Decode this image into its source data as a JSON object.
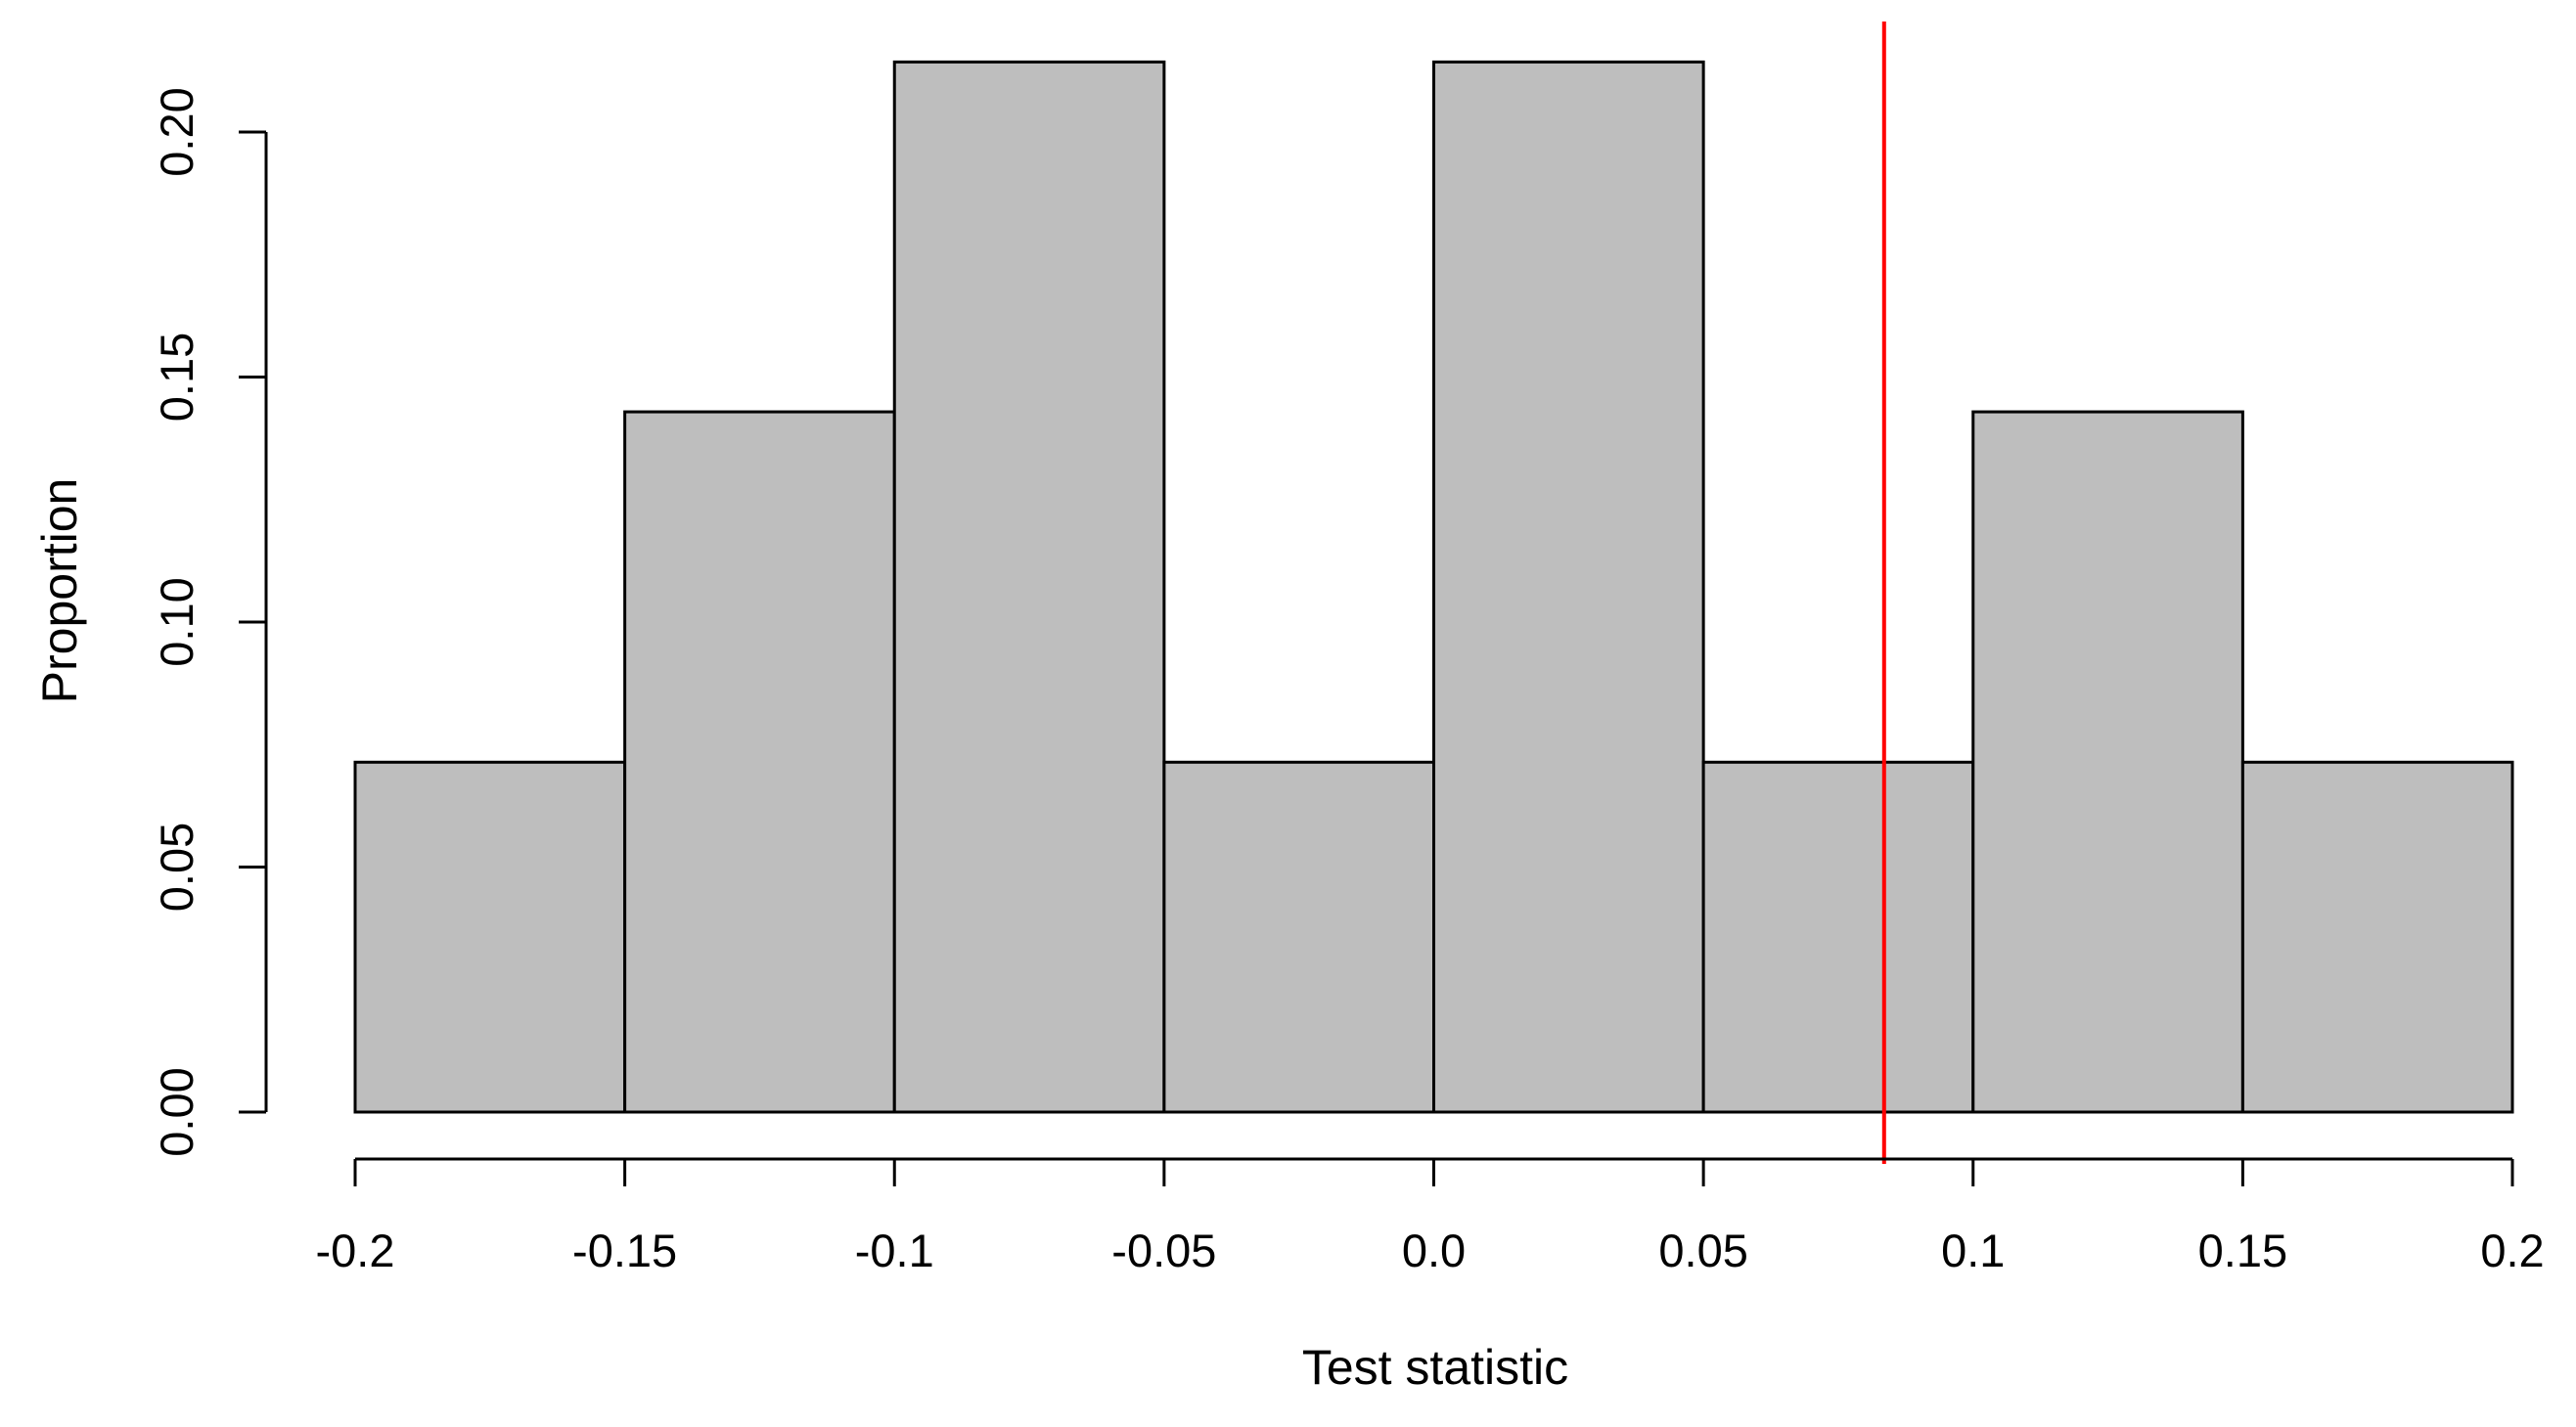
{
  "chart_data": {
    "type": "bar",
    "subtype": "histogram",
    "bins": [
      {
        "start": -0.2,
        "end": -0.15,
        "value": 0.0714
      },
      {
        "start": -0.15,
        "end": -0.1,
        "value": 0.1429
      },
      {
        "start": -0.1,
        "end": -0.05,
        "value": 0.2143
      },
      {
        "start": -0.05,
        "end": 0.0,
        "value": 0.0714
      },
      {
        "start": 0.0,
        "end": 0.05,
        "value": 0.2143
      },
      {
        "start": 0.05,
        "end": 0.1,
        "value": 0.0714
      },
      {
        "start": 0.1,
        "end": 0.15,
        "value": 0.1429
      },
      {
        "start": 0.15,
        "end": 0.2,
        "value": 0.0714
      }
    ],
    "reference_line": {
      "x": 0.0835,
      "color": "#ff0000"
    },
    "xlabel": "Test statistic",
    "ylabel": "Proportion",
    "xlim": [
      -0.2,
      0.2
    ],
    "ylim": [
      0,
      0.2143
    ],
    "x_ticks": [
      {
        "value": -0.2,
        "label": "-0.2"
      },
      {
        "value": -0.15,
        "label": "-0.15"
      },
      {
        "value": -0.1,
        "label": "-0.1"
      },
      {
        "value": -0.05,
        "label": "-0.05"
      },
      {
        "value": 0.0,
        "label": "0.0"
      },
      {
        "value": 0.05,
        "label": "0.05"
      },
      {
        "value": 0.1,
        "label": "0.1"
      },
      {
        "value": 0.15,
        "label": "0.15"
      },
      {
        "value": 0.2,
        "label": "0.2"
      }
    ],
    "y_ticks": [
      {
        "value": 0.0,
        "label": "0.00"
      },
      {
        "value": 0.05,
        "label": "0.05"
      },
      {
        "value": 0.1,
        "label": "0.10"
      },
      {
        "value": 0.15,
        "label": "0.15"
      },
      {
        "value": 0.2,
        "label": "0.20"
      }
    ],
    "grid": false,
    "colors": {
      "bar_fill": "#bebebe",
      "bar_stroke": "#000000"
    }
  }
}
